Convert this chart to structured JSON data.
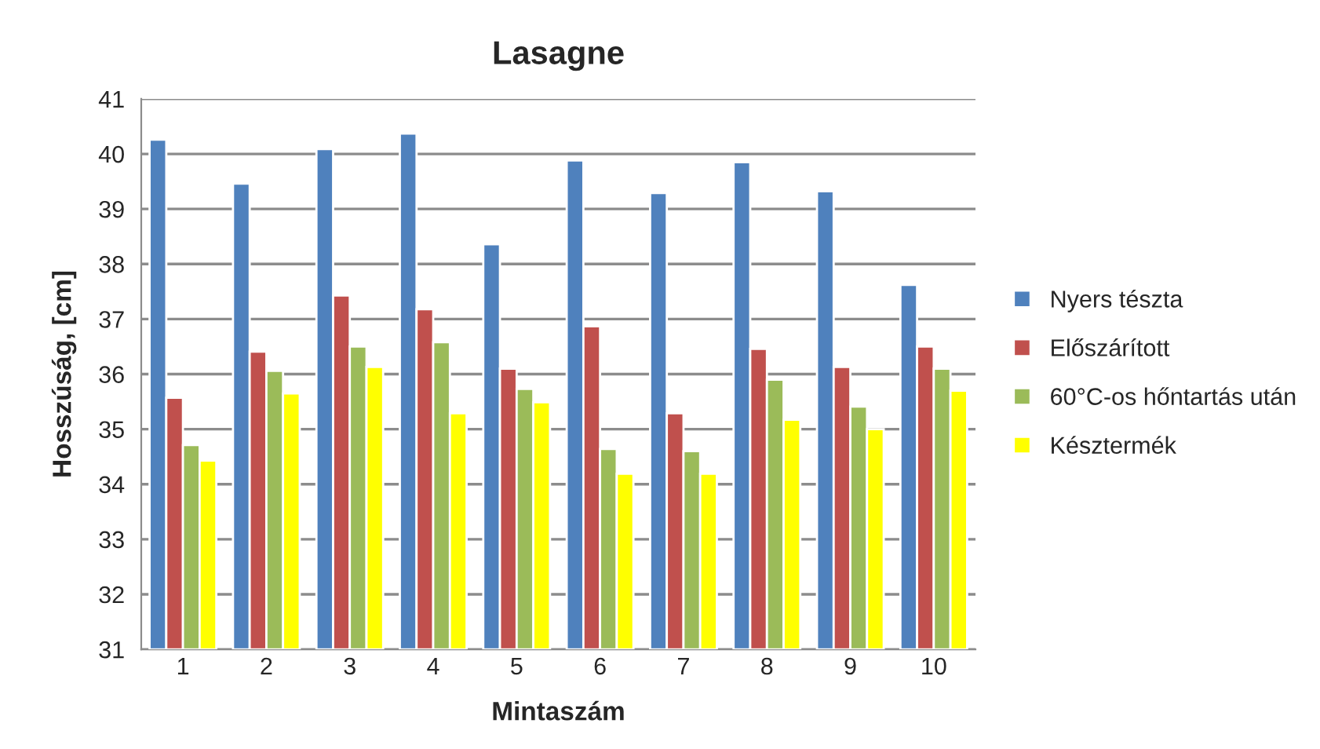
{
  "chart_data": {
    "type": "bar",
    "title": "Lasagne",
    "xlabel": "Mintaszám",
    "ylabel": "Hosszúság, [cm]",
    "categories": [
      "1",
      "2",
      "3",
      "4",
      "5",
      "6",
      "7",
      "8",
      "9",
      "10"
    ],
    "series": [
      {
        "name": "Nyers tészta",
        "color": "#4f81bd",
        "values": [
          40.26,
          39.46,
          40.09,
          40.37,
          38.36,
          39.88,
          39.29,
          39.85,
          39.32,
          37.62
        ]
      },
      {
        "name": "Előszárított",
        "color": "#c0504d",
        "values": [
          35.57,
          36.41,
          37.43,
          37.18,
          36.1,
          36.87,
          35.29,
          36.46,
          36.13,
          36.5
        ]
      },
      {
        "name": "60°C-os hőntartás után",
        "color": "#9bbb59",
        "values": [
          34.71,
          36.06,
          36.5,
          36.58,
          35.73,
          34.64,
          34.6,
          35.9,
          35.41,
          36.1
        ]
      },
      {
        "name": "Késztermék",
        "color": "#ffff00",
        "values": [
          34.43,
          35.65,
          36.13,
          35.29,
          35.49,
          34.19,
          34.19,
          35.17,
          35.0,
          35.7
        ]
      }
    ],
    "ylim": [
      31,
      41
    ],
    "yticks": [
      31,
      32,
      33,
      34,
      35,
      36,
      37,
      38,
      39,
      40,
      41
    ],
    "grid": "y",
    "legend": "right"
  }
}
